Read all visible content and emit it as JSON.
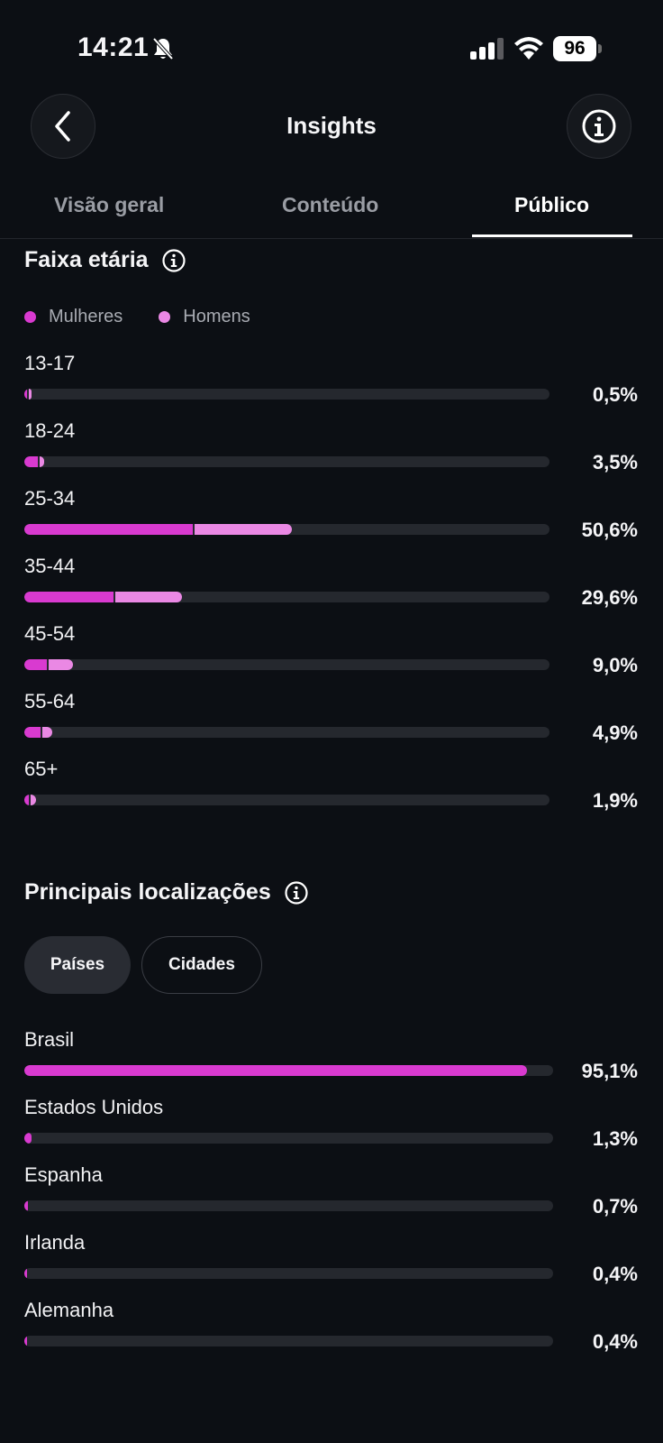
{
  "status_bar": {
    "time": "14:21",
    "battery": "96",
    "icons": [
      "bell-slash-icon",
      "cellular-signal-icon",
      "wifi-icon",
      "battery-icon"
    ]
  },
  "header": {
    "title": "Insights",
    "back_icon": "chevron-left-icon",
    "info_icon": "info-icon"
  },
  "tabs": [
    {
      "label": "Visão geral",
      "active": false
    },
    {
      "label": "Conteúdo",
      "active": false
    },
    {
      "label": "Público",
      "active": true
    }
  ],
  "age": {
    "title": "Faixa etária",
    "legend": [
      {
        "label": "Mulheres",
        "color": "#d93ad0"
      },
      {
        "label": "Homens",
        "color": "#ea88e4"
      }
    ],
    "rows": [
      {
        "label": "13-17",
        "percent": "0,5%",
        "women": 0.3,
        "men": 0.2
      },
      {
        "label": "18-24",
        "percent": "3,5%",
        "women": 2.6,
        "men": 0.9
      },
      {
        "label": "25-34",
        "percent": "50,6%",
        "women": 32.0,
        "men": 18.6
      },
      {
        "label": "35-44",
        "percent": "29,6%",
        "women": 17.0,
        "men": 12.6
      },
      {
        "label": "45-54",
        "percent": "9,0%",
        "women": 4.3,
        "men": 4.7
      },
      {
        "label": "55-64",
        "percent": "4,9%",
        "women": 3.1,
        "men": 1.8
      },
      {
        "label": "65+",
        "percent": "1,9%",
        "women": 0.8,
        "men": 1.1
      }
    ]
  },
  "locations": {
    "title": "Principais localizações",
    "filters": [
      {
        "label": "Países",
        "active": true
      },
      {
        "label": "Cidades",
        "active": false
      }
    ],
    "rows": [
      {
        "label": "Brasil",
        "percent": "95,1%",
        "value": 95.1
      },
      {
        "label": "Estados Unidos",
        "percent": "1,3%",
        "value": 1.3
      },
      {
        "label": "Espanha",
        "percent": "0,7%",
        "value": 0.7
      },
      {
        "label": "Irlanda",
        "percent": "0,4%",
        "value": 0.4
      },
      {
        "label": "Alemanha",
        "percent": "0,4%",
        "value": 0.4
      }
    ]
  }
}
